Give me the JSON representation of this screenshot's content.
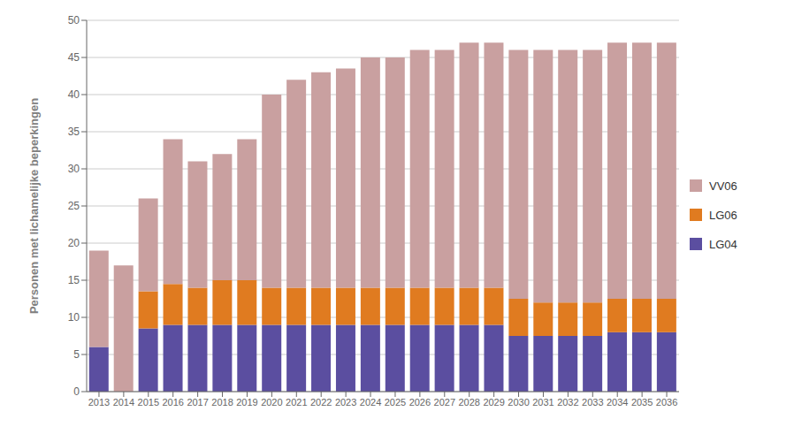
{
  "chart_data": {
    "type": "bar",
    "stacked": true,
    "ylabel": "Personen met lichamelijke beperkingen",
    "categories": [
      "2013",
      "2014",
      "2015",
      "2016",
      "2017",
      "2018",
      "2019",
      "2020",
      "2021",
      "2022",
      "2023",
      "2024",
      "2025",
      "2026",
      "2027",
      "2028",
      "2029",
      "2030",
      "2031",
      "2032",
      "2033",
      "2034",
      "2035",
      "2036"
    ],
    "series": [
      {
        "name": "LG04",
        "color": "#5b4ea0",
        "values": [
          6,
          0,
          8.5,
          9,
          9,
          9,
          9,
          9,
          9,
          9,
          9,
          9,
          9,
          9,
          9,
          9,
          9,
          7.5,
          7.5,
          7.5,
          7.5,
          8,
          8,
          8
        ]
      },
      {
        "name": "LG06",
        "color": "#e07b20",
        "values": [
          0,
          0,
          5,
          5.5,
          5,
          6,
          6,
          5,
          5,
          5,
          5,
          5,
          5,
          5,
          5,
          5,
          5,
          5,
          4.5,
          4.5,
          4.5,
          4.5,
          4.5,
          4.5
        ]
      },
      {
        "name": "VV06",
        "color": "#c9a0a0",
        "values": [
          13,
          17,
          12.5,
          19.5,
          17,
          17,
          19,
          26,
          28,
          29,
          29.5,
          31,
          31,
          32,
          32,
          33,
          33,
          33.5,
          34,
          34,
          34,
          34.5,
          34.5,
          34.5
        ]
      }
    ],
    "ylim": [
      0,
      50
    ],
    "yticks": [
      0,
      5,
      10,
      15,
      20,
      25,
      30,
      35,
      40,
      45,
      50
    ],
    "grid": true,
    "legend": "right"
  }
}
